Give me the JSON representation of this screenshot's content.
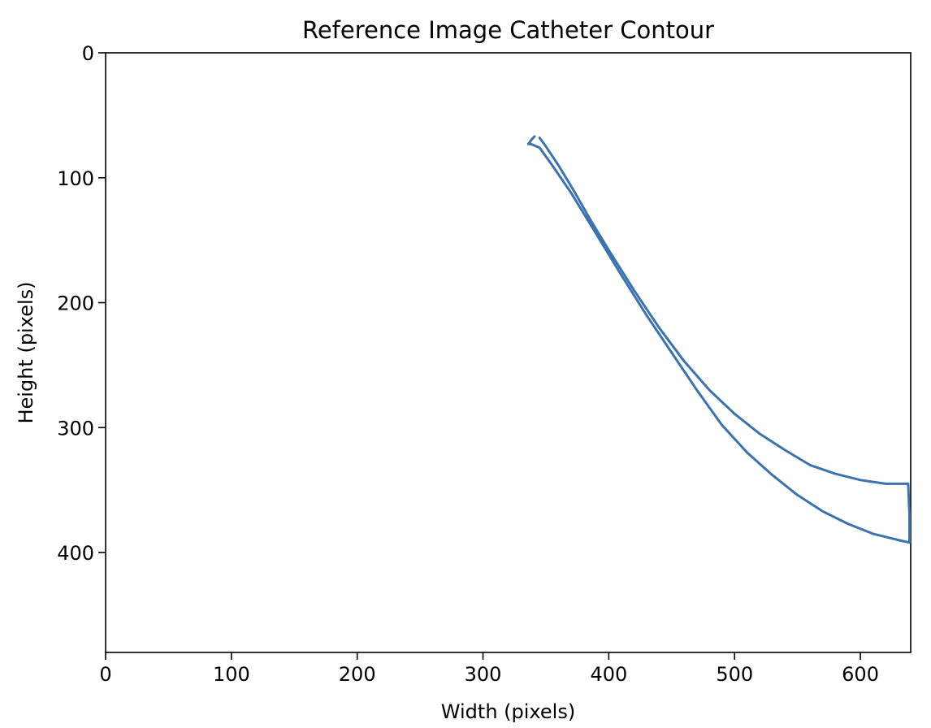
{
  "chart_data": {
    "type": "line",
    "title": "Reference Image Catheter Contour",
    "xlabel": "Width (pixels)",
    "ylabel": "Height (pixels)",
    "xlim": [
      0,
      640
    ],
    "ylim": [
      480,
      0
    ],
    "y_inverted": true,
    "grid": false,
    "legend": "none",
    "xticks": [
      "0",
      "100",
      "200",
      "300",
      "400",
      "500",
      "600"
    ],
    "yticks": [
      "0",
      "100",
      "200",
      "300",
      "400"
    ],
    "series": [
      {
        "color": "#3b72b0",
        "x": [
          345,
          350,
          360,
          372,
          385,
          400,
          420,
          440,
          460,
          480,
          500,
          520,
          540,
          560,
          580,
          600,
          620,
          638,
          639,
          639,
          630,
          610,
          590,
          570,
          550,
          530,
          510,
          490,
          470,
          450,
          430,
          410,
          390,
          370,
          355,
          345,
          338,
          336,
          339,
          341
        ],
        "y": [
          68,
          75,
          90,
          110,
          133,
          158,
          190,
          220,
          247,
          270,
          289,
          305,
          318,
          330,
          337,
          342,
          345,
          345,
          370,
          392,
          390,
          385,
          377,
          367,
          354,
          338,
          320,
          298,
          270,
          240,
          210,
          178,
          145,
          112,
          90,
          76,
          73,
          73,
          69,
          67
        ]
      }
    ]
  }
}
